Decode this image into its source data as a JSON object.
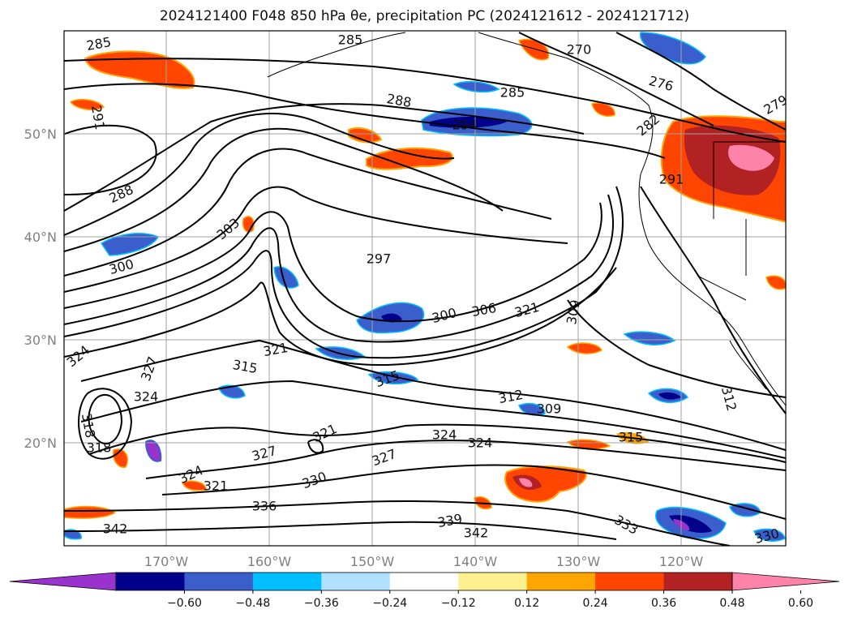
{
  "title": "2024121400 F048 850 hPa θe, precipitation PC (2024121612 - 2024121712)",
  "map": {
    "lat_ticks": [
      "50°N",
      "40°N",
      "30°N",
      "20°N"
    ],
    "lon_ticks": [
      "170°W",
      "160°W",
      "150°W",
      "140°W",
      "130°W",
      "120°W"
    ],
    "gridline_color": "#a0a0a0",
    "coast_color": "#000000"
  },
  "contour_labels": [
    {
      "text": "285"
    },
    {
      "text": "285"
    },
    {
      "text": "270"
    },
    {
      "text": "276"
    },
    {
      "text": "285"
    },
    {
      "text": "288"
    },
    {
      "text": "291"
    },
    {
      "text": "294"
    },
    {
      "text": "282"
    },
    {
      "text": "291"
    },
    {
      "text": "279"
    },
    {
      "text": "288"
    },
    {
      "text": "303"
    },
    {
      "text": "300"
    },
    {
      "text": "297"
    },
    {
      "text": "300"
    },
    {
      "text": "306"
    },
    {
      "text": "321"
    },
    {
      "text": "309"
    },
    {
      "text": "324"
    },
    {
      "text": "321"
    },
    {
      "text": "315"
    },
    {
      "text": "327"
    },
    {
      "text": "315"
    },
    {
      "text": "324"
    },
    {
      "text": "312"
    },
    {
      "text": "309"
    },
    {
      "text": "312"
    },
    {
      "text": "318"
    },
    {
      "text": "324"
    },
    {
      "text": "318"
    },
    {
      "text": "315"
    },
    {
      "text": "324"
    },
    {
      "text": "327"
    },
    {
      "text": "321"
    },
    {
      "text": "327"
    },
    {
      "text": "324"
    },
    {
      "text": "321"
    },
    {
      "text": "330"
    },
    {
      "text": "336"
    },
    {
      "text": "339"
    },
    {
      "text": "342"
    },
    {
      "text": "342"
    },
    {
      "text": "333"
    },
    {
      "text": "330"
    }
  ],
  "colorbar": {
    "colors": [
      "#9a32cd",
      "#00008b",
      "#3a5fcd",
      "#00bfff",
      "#b0e2ff",
      "#ffffff",
      "#fff08f",
      "#ffa500",
      "#ff4500",
      "#b22222",
      "#ff82ab"
    ],
    "tick_labels": [
      "−0.60",
      "−0.48",
      "−0.36",
      "−0.24",
      "−0.12",
      "0.12",
      "0.24",
      "0.36",
      "0.48",
      "0.60"
    ]
  }
}
